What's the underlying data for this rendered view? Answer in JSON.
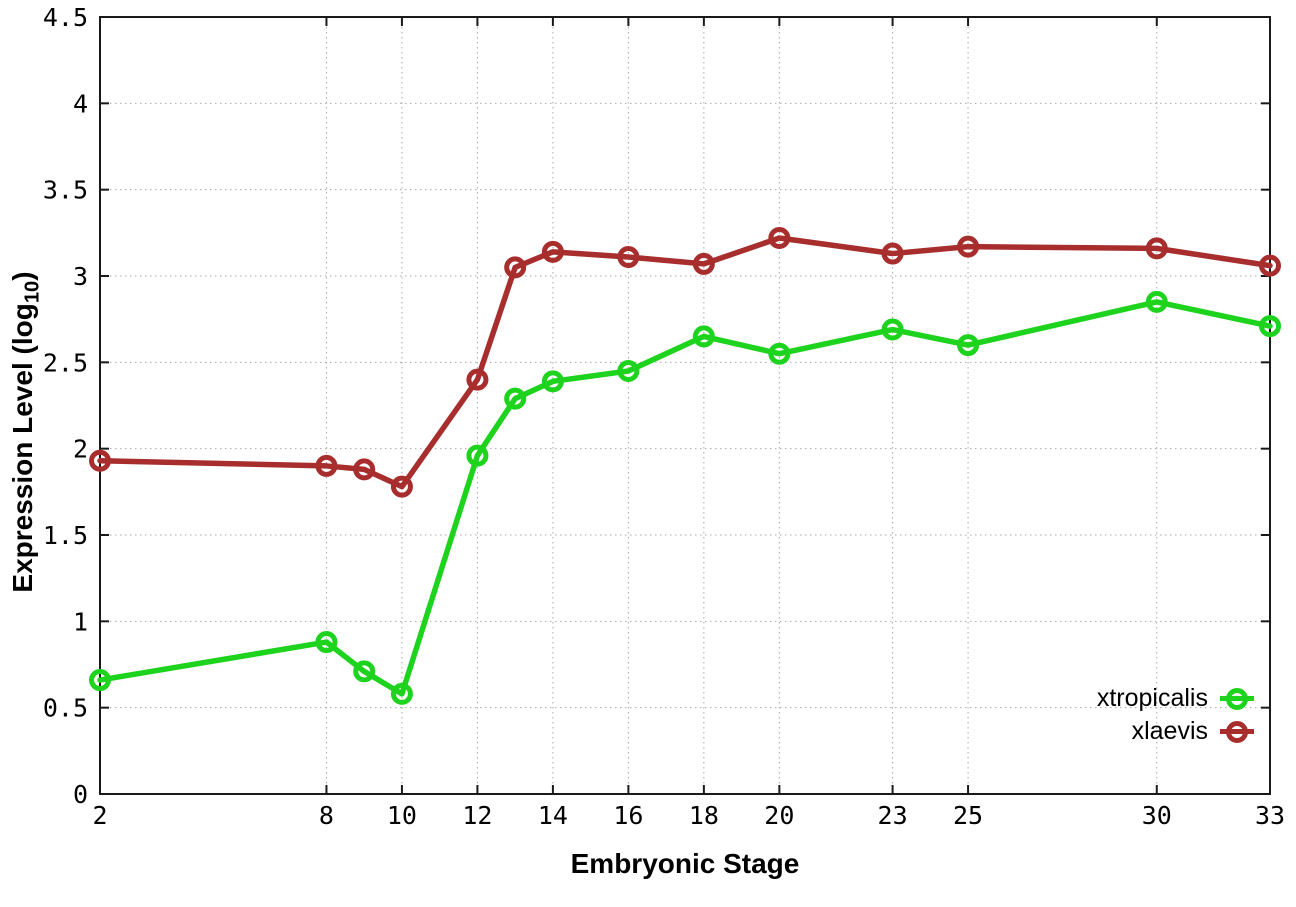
{
  "chart_data": {
    "type": "line",
    "title": "",
    "xlabel": "Embryonic Stage",
    "ylabel": "Expression Level (log10)",
    "ylabel_parts": {
      "main": "Expression Level (log",
      "sub": "10",
      "close": ")"
    },
    "xlim": [
      2,
      33
    ],
    "ylim": [
      0,
      4.5
    ],
    "x_ticks": [
      2,
      8,
      10,
      12,
      14,
      16,
      18,
      20,
      23,
      25,
      30,
      33
    ],
    "y_ticks": [
      0,
      0.5,
      1,
      1.5,
      2,
      2.5,
      3,
      3.5,
      4,
      4.5
    ],
    "grid": "dotted",
    "legend_position": "inside-bottom-right",
    "x": [
      2,
      8,
      9,
      10,
      12,
      13,
      14,
      16,
      18,
      20,
      23,
      25,
      30,
      33
    ],
    "series": [
      {
        "name": "xtropicalis",
        "color": "#1dd31d",
        "values": [
          0.66,
          0.88,
          0.71,
          0.58,
          1.96,
          2.29,
          2.39,
          2.45,
          2.65,
          2.55,
          2.69,
          2.6,
          2.85,
          2.71
        ]
      },
      {
        "name": "xlaevis",
        "color": "#a82e2e",
        "values": [
          1.93,
          1.9,
          1.88,
          1.78,
          2.4,
          3.05,
          3.14,
          3.11,
          3.07,
          3.22,
          3.13,
          3.17,
          3.16,
          3.06
        ]
      }
    ],
    "marker": "open-circle",
    "axis_color": "#1a1a1a",
    "grid_color": "#a9a9a9",
    "background": "#ffffff"
  }
}
